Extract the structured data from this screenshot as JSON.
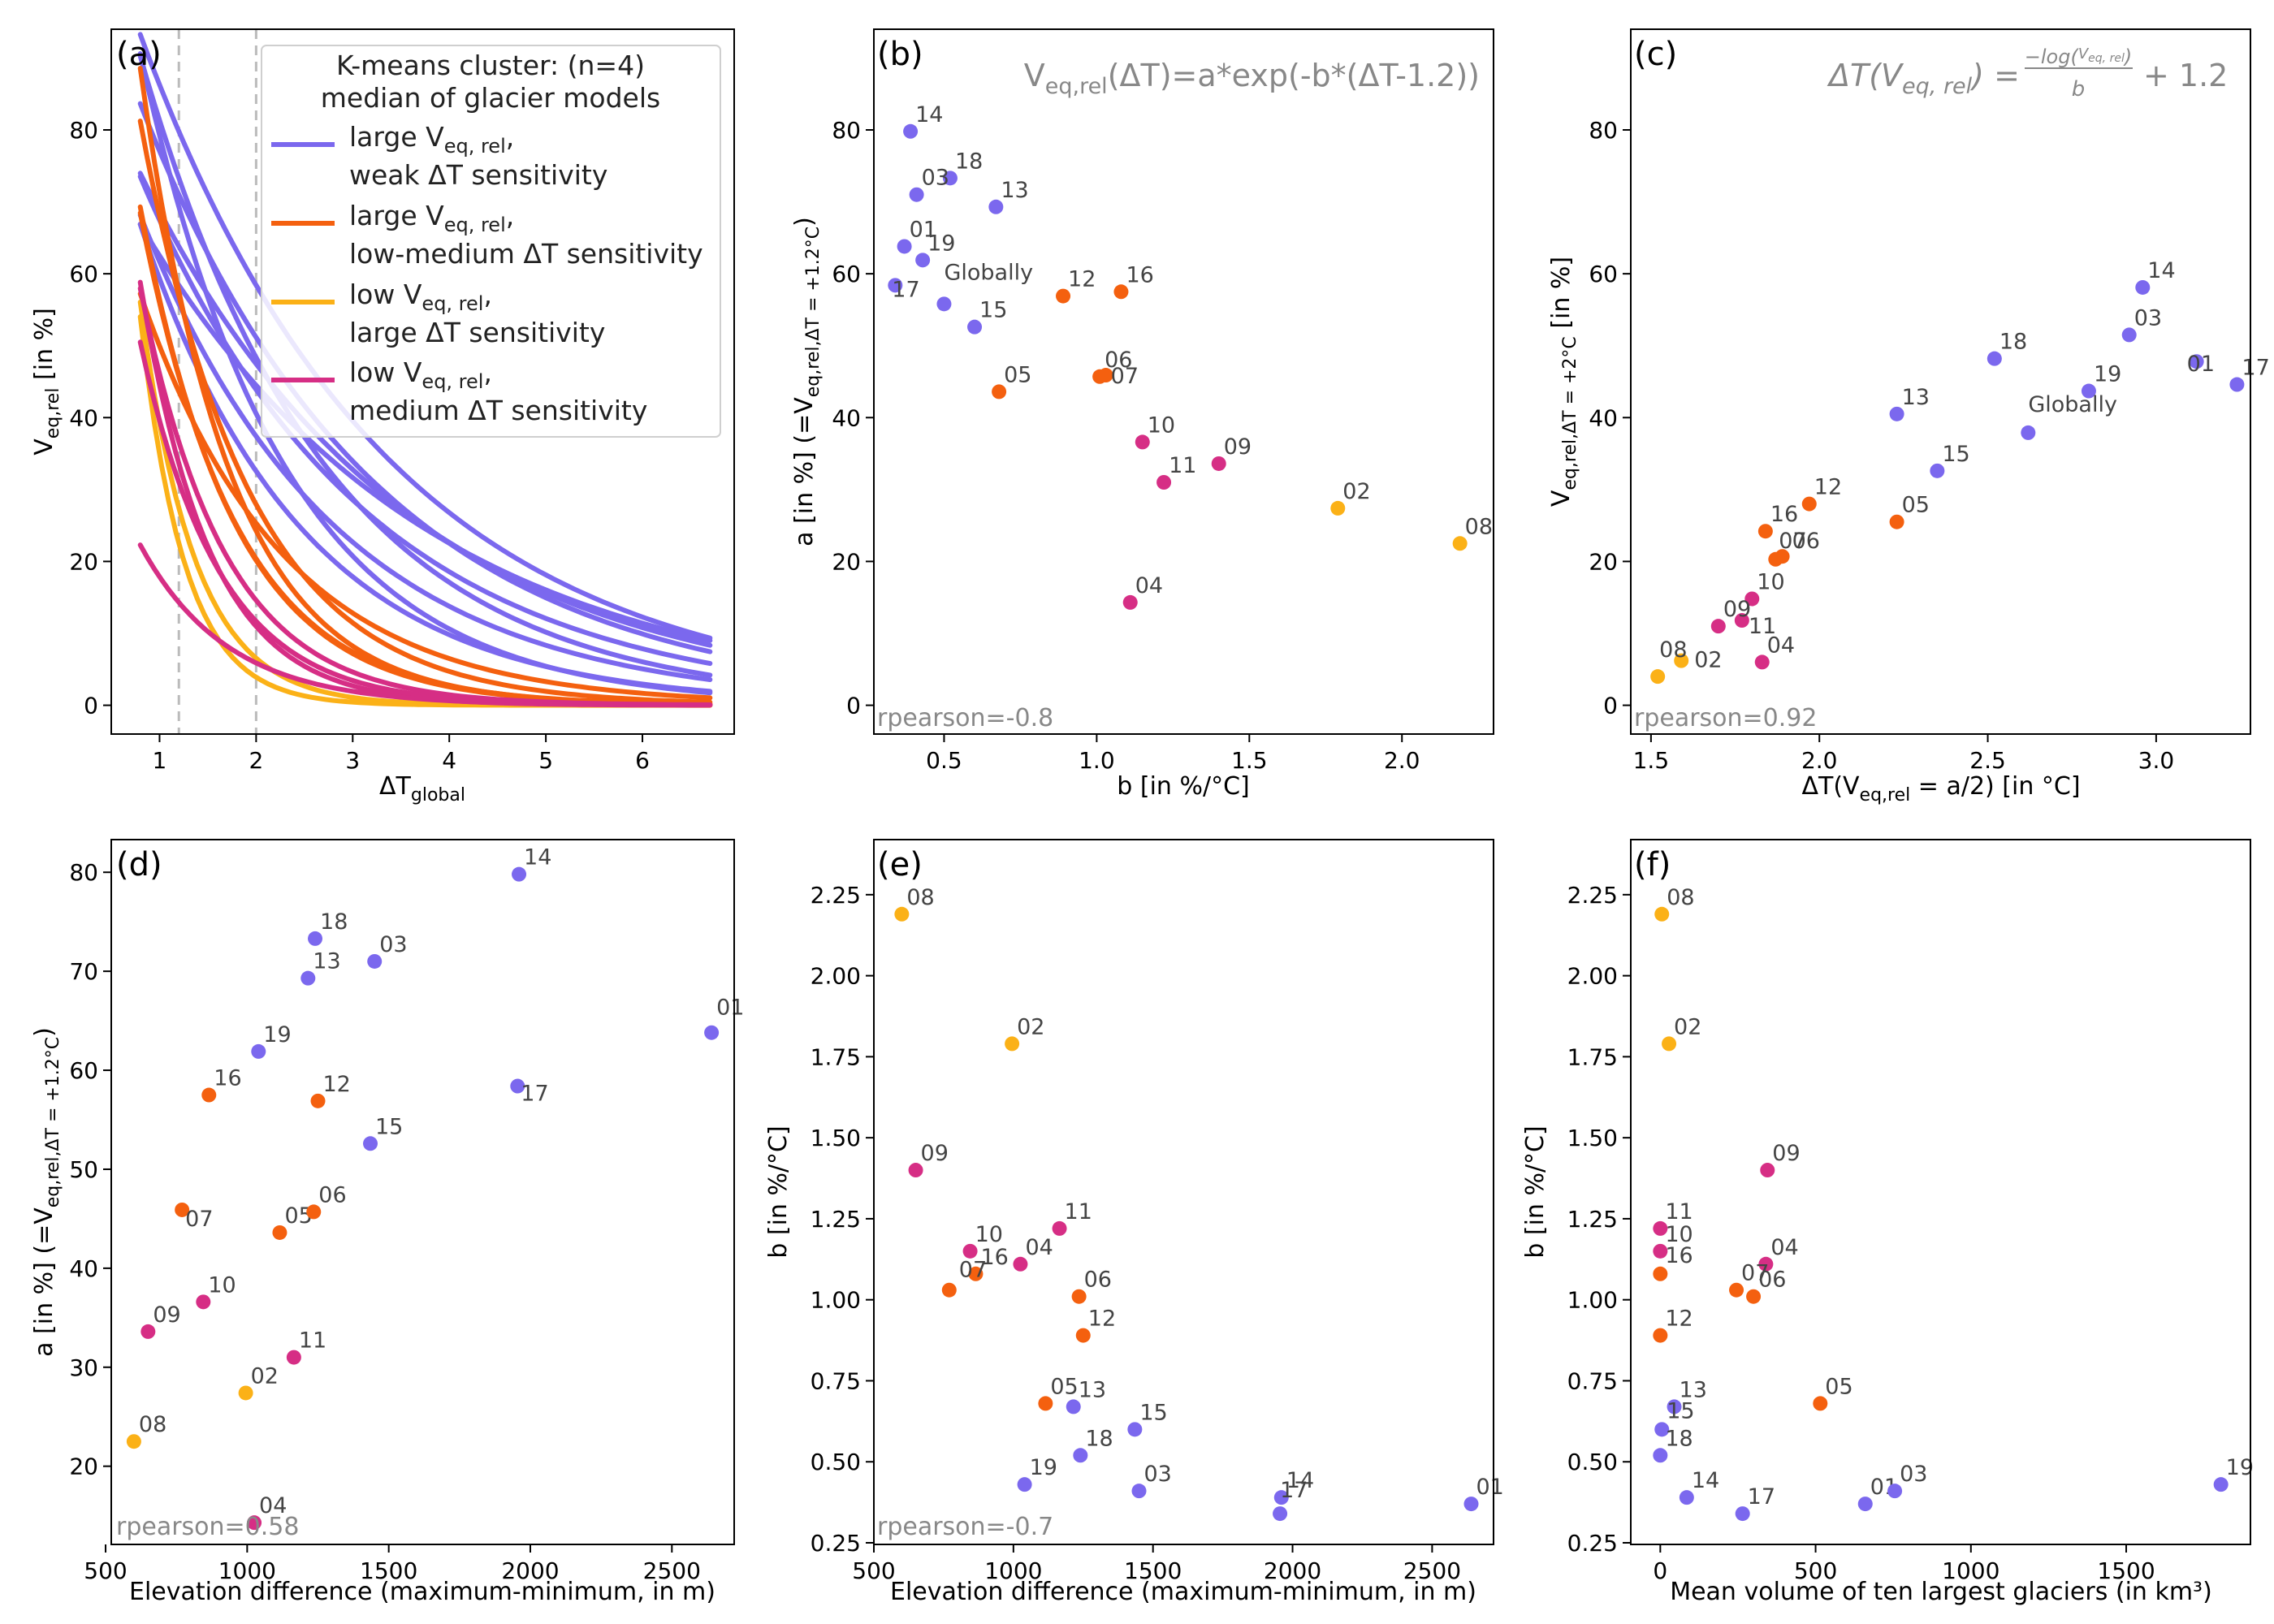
{
  "colors": {
    "cluster_large_weak": "#7b68ee",
    "cluster_large_lowmed": "#f4600f",
    "cluster_low_large": "#fbb117",
    "cluster_low_medium": "#d62e85",
    "axis": "#000000",
    "note": "#888888",
    "ptlabel": "#444444",
    "dashed": "#bbbbbb"
  },
  "legend": {
    "title_line1": "K-means cluster: (n=4)",
    "title_line2": "median of glacier models",
    "entries": [
      {
        "cluster": "cluster_large_weak",
        "line1": "large V",
        "sub1": "eq, rel",
        "tail1": ",",
        "line2": "weak ΔT sensitivity"
      },
      {
        "cluster": "cluster_large_lowmed",
        "line1": "large V",
        "sub1": "eq, rel",
        "tail1": ",",
        "line2": "low-medium ΔT sensitivity"
      },
      {
        "cluster": "cluster_low_large",
        "line1": "low V",
        "sub1": "eq, rel",
        "tail1": ",",
        "line2": "large ΔT sensitivity"
      },
      {
        "cluster": "cluster_low_medium",
        "line1": "low V",
        "sub1": "eq, rel",
        "tail1": ",",
        "line2": "medium ΔT sensitivity"
      }
    ]
  },
  "regions": {
    "01": {
      "cluster": "cluster_large_weak",
      "a": 63.8,
      "b": 0.37,
      "elev": 2640,
      "dT_half": 3.12,
      "V2": 47.8,
      "vol": 660
    },
    "02": {
      "cluster": "cluster_low_large",
      "a": 27.4,
      "b": 1.79,
      "elev": 995,
      "dT_half": 1.59,
      "V2": 6.2,
      "vol": 28
    },
    "03": {
      "cluster": "cluster_large_weak",
      "a": 71.0,
      "b": 0.41,
      "elev": 1450,
      "dT_half": 2.92,
      "V2": 51.5,
      "vol": 755
    },
    "04": {
      "cluster": "cluster_low_medium",
      "a": 14.3,
      "b": 1.11,
      "elev": 1025,
      "dT_half": 1.83,
      "V2": 6.0,
      "vol": 340
    },
    "05": {
      "cluster": "cluster_large_lowmed",
      "a": 43.6,
      "b": 0.68,
      "elev": 1115,
      "dT_half": 2.23,
      "V2": 25.5,
      "vol": 515
    },
    "06": {
      "cluster": "cluster_large_lowmed",
      "a": 45.7,
      "b": 1.01,
      "elev": 1235,
      "dT_half": 1.89,
      "V2": 20.7,
      "vol": 300
    },
    "07": {
      "cluster": "cluster_large_lowmed",
      "a": 45.9,
      "b": 1.03,
      "elev": 770,
      "dT_half": 1.87,
      "V2": 20.3,
      "vol": 245
    },
    "08": {
      "cluster": "cluster_low_large",
      "a": 22.5,
      "b": 2.19,
      "elev": 600,
      "dT_half": 1.52,
      "V2": 4.0,
      "vol": 5
    },
    "09": {
      "cluster": "cluster_low_medium",
      "a": 33.6,
      "b": 1.4,
      "elev": 650,
      "dT_half": 1.7,
      "V2": 11.0,
      "vol": 345
    },
    "10": {
      "cluster": "cluster_low_medium",
      "a": 36.6,
      "b": 1.15,
      "elev": 845,
      "dT_half": 1.8,
      "V2": 14.8,
      "vol": 0
    },
    "11": {
      "cluster": "cluster_low_medium",
      "a": 31.0,
      "b": 1.22,
      "elev": 1165,
      "dT_half": 1.77,
      "V2": 11.8,
      "vol": 0
    },
    "12": {
      "cluster": "cluster_large_lowmed",
      "a": 56.9,
      "b": 0.89,
      "elev": 1250,
      "dT_half": 1.97,
      "V2": 28.0,
      "vol": 0
    },
    "13": {
      "cluster": "cluster_large_weak",
      "a": 69.3,
      "b": 0.67,
      "elev": 1215,
      "dT_half": 2.23,
      "V2": 40.5,
      "vol": 45
    },
    "14": {
      "cluster": "cluster_large_weak",
      "a": 79.8,
      "b": 0.39,
      "elev": 1960,
      "dT_half": 2.96,
      "V2": 58.1,
      "vol": 85
    },
    "15": {
      "cluster": "cluster_large_weak",
      "a": 52.6,
      "b": 0.6,
      "elev": 1435,
      "dT_half": 2.35,
      "V2": 32.6,
      "vol": 5
    },
    "16": {
      "cluster": "cluster_large_lowmed",
      "a": 57.5,
      "b": 1.08,
      "elev": 865,
      "dT_half": 1.84,
      "V2": 24.2,
      "vol": 0
    },
    "17": {
      "cluster": "cluster_large_weak",
      "a": 58.4,
      "b": 0.34,
      "elev": 1955,
      "dT_half": 3.24,
      "V2": 44.6,
      "vol": 265
    },
    "18": {
      "cluster": "cluster_large_weak",
      "a": 73.3,
      "b": 0.52,
      "elev": 1240,
      "dT_half": 2.52,
      "V2": 48.2,
      "vol": 0
    },
    "19": {
      "cluster": "cluster_large_weak",
      "a": 61.9,
      "b": 0.43,
      "elev": 1040,
      "dT_half": 2.8,
      "V2": 43.7,
      "vol": 1805
    },
    "Globally": {
      "cluster": "cluster_large_weak",
      "a": 55.8,
      "b": 0.5,
      "dT_half": 2.62,
      "V2": 37.9
    }
  },
  "chart_data": [
    {
      "panel": "(a)",
      "type": "line",
      "xlabel": "ΔT",
      "xlabel_sub": "global",
      "ylabel": "V",
      "ylabel_sub": "eq,rel",
      "ylabel_tail": " [in %]",
      "xlim": [
        0.5,
        6.95
      ],
      "ylim": [
        -4,
        94
      ],
      "xticks": [
        "1",
        "2",
        "3",
        "4",
        "5",
        "6"
      ],
      "yticks": [
        "0",
        "20",
        "40",
        "60",
        "80"
      ],
      "vlines": [
        1.2,
        2.0
      ],
      "x_range": [
        0.8,
        6.7
      ],
      "curve_formula": "V = a*exp(-b*(ΔT-1.2))",
      "curves": [
        {
          "cluster": "cluster_large_weak",
          "a": 79.8,
          "b": 0.39
        },
        {
          "cluster": "cluster_large_weak",
          "a": 71.0,
          "b": 0.41
        },
        {
          "cluster": "cluster_large_weak",
          "a": 63.8,
          "b": 0.37
        },
        {
          "cluster": "cluster_large_weak",
          "a": 58.4,
          "b": 0.34
        },
        {
          "cluster": "cluster_large_weak",
          "a": 61.9,
          "b": 0.43
        },
        {
          "cluster": "cluster_large_weak",
          "a": 73.3,
          "b": 0.52
        },
        {
          "cluster": "cluster_large_weak",
          "a": 69.3,
          "b": 0.67
        },
        {
          "cluster": "cluster_large_weak",
          "a": 52.6,
          "b": 0.6
        },
        {
          "cluster": "cluster_large_weak",
          "a": 55.8,
          "b": 0.5
        },
        {
          "cluster": "cluster_large_lowmed",
          "a": 57.5,
          "b": 1.08
        },
        {
          "cluster": "cluster_large_lowmed",
          "a": 56.9,
          "b": 0.89
        },
        {
          "cluster": "cluster_large_lowmed",
          "a": 43.6,
          "b": 0.68
        },
        {
          "cluster": "cluster_large_lowmed",
          "a": 45.7,
          "b": 1.01
        },
        {
          "cluster": "cluster_large_lowmed",
          "a": 45.9,
          "b": 1.03
        },
        {
          "cluster": "cluster_low_large",
          "a": 27.4,
          "b": 1.79
        },
        {
          "cluster": "cluster_low_large",
          "a": 22.5,
          "b": 2.19
        },
        {
          "cluster": "cluster_low_medium",
          "a": 36.6,
          "b": 1.15
        },
        {
          "cluster": "cluster_low_medium",
          "a": 33.6,
          "b": 1.4
        },
        {
          "cluster": "cluster_low_medium",
          "a": 31.0,
          "b": 1.22
        },
        {
          "cluster": "cluster_low_medium",
          "a": 14.3,
          "b": 1.11
        }
      ]
    },
    {
      "panel": "(b)",
      "type": "scatter",
      "xkey": "b",
      "ykey": "a",
      "xlabel": "b [in %/°C]",
      "ylabel": "a [in %] (=V",
      "ylabel_sub": "eq,rel,ΔT = +1.2°C",
      "ylabel_tail": ")",
      "xlim": [
        0.27,
        2.3
      ],
      "ylim": [
        -4,
        94
      ],
      "xticks": [
        "0.5",
        "1.0",
        "1.5",
        "2.0"
      ],
      "yticks": [
        "0",
        "20",
        "40",
        "60",
        "80"
      ],
      "annot": "V_eq,rel(ΔT)=a*exp(-b*(ΔT-1.2))",
      "annot_parts": [
        "V",
        "eq,rel",
        "(ΔT)=a*exp(-b*(ΔT-1.2))"
      ],
      "rpearson": "rpearson=-0.8",
      "include_global": true
    },
    {
      "panel": "(c)",
      "type": "scatter",
      "xkey": "dT_half",
      "ykey": "V2",
      "xlabel": "ΔT(V",
      "xlabel_sub": "eq,rel",
      "xlabel_tail": " = a/2) [in °C]",
      "ylabel": "V",
      "ylabel_sub": "eq,rel,ΔT = +2°C",
      "ylabel_tail": " [in %]",
      "xlim": [
        1.44,
        3.28
      ],
      "ylim": [
        -4,
        94
      ],
      "xticks": [
        "1.5",
        "2.0",
        "2.5",
        "3.0"
      ],
      "yticks": [
        "0",
        "20",
        "40",
        "60",
        "80"
      ],
      "annot": "ΔT(V_eq,rel) = -log(V_eq,rel/a)/b + 1.2",
      "rpearson": "rpearson=0.92",
      "include_global": true
    },
    {
      "panel": "(d)",
      "type": "scatter",
      "xkey": "elev",
      "ykey": "a",
      "xlabel": "Elevation difference (maximum-minimum, in m)",
      "ylabel": "a [in %] (=V",
      "ylabel_sub": "eq,rel,ΔT = +1.2°C",
      "ylabel_tail": ")",
      "xlim": [
        520,
        2720
      ],
      "ylim": [
        12.1,
        83.3
      ],
      "xticks": [
        "500",
        "1000",
        "1500",
        "2000",
        "2500"
      ],
      "yticks": [
        "20",
        "30",
        "40",
        "50",
        "60",
        "70",
        "80"
      ],
      "rpearson": "rpearson=0.58",
      "include_global": false
    },
    {
      "panel": "(e)",
      "type": "scatter",
      "xkey": "elev",
      "ykey": "b",
      "xlabel": "Elevation difference (maximum-minimum, in m)",
      "ylabel": "b [in %/°C]",
      "xlim": [
        500,
        2720
      ],
      "ylim": [
        0.245,
        2.42
      ],
      "xticks": [
        "500",
        "1000",
        "1500",
        "2000",
        "2500"
      ],
      "yticks": [
        "0.25",
        "0.50",
        "0.75",
        "1.00",
        "1.25",
        "1.50",
        "1.75",
        "2.00",
        "2.25"
      ],
      "rpearson": "rpearson=-0.7",
      "include_global": false
    },
    {
      "panel": "(f)",
      "type": "scatter",
      "xkey": "vol",
      "ykey": "b",
      "xlabel": "Mean volume of ten largest glaciers (in km³)",
      "ylabel": "b [in %/°C]",
      "xlim": [
        -95,
        1900
      ],
      "ylim": [
        0.245,
        2.42
      ],
      "xticks": [
        "0",
        "500",
        "1000",
        "1500"
      ],
      "yticks": [
        "0.25",
        "0.50",
        "0.75",
        "1.00",
        "1.25",
        "1.50",
        "1.75",
        "2.00",
        "2.25"
      ],
      "include_global": false
    }
  ]
}
